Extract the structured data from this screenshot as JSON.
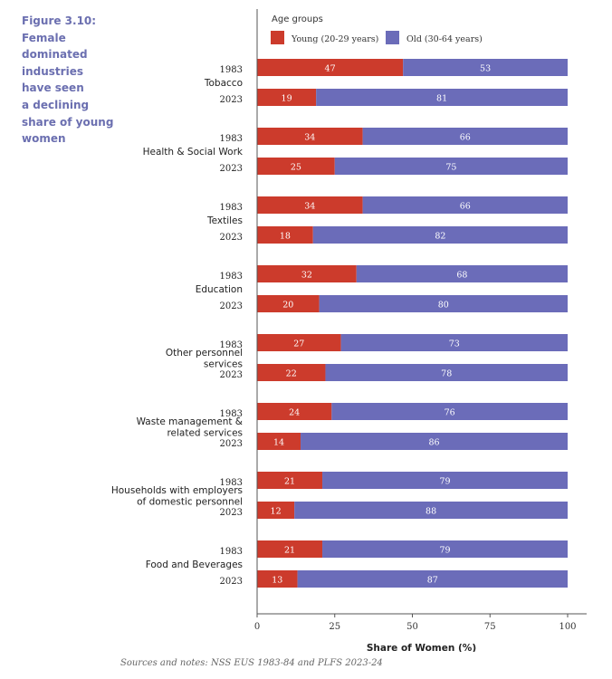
{
  "caption": {
    "label": "Figure 3.10:",
    "lines": [
      "Female",
      "dominated",
      "industries",
      "have seen",
      "a declining",
      "share of young",
      "women"
    ]
  },
  "source_note": "Sources and notes: NSS EUS 1983-84 and PLFS 2023-24",
  "chart_data": {
    "type": "bar",
    "orientation": "horizontal",
    "stacked": true,
    "legend_title": "Age groups",
    "legend_position": "top",
    "xlabel": "Share of Women (%)",
    "xlim": [
      0,
      100
    ],
    "xticks": [
      0,
      25,
      50,
      75,
      100
    ],
    "grid": false,
    "groups": [
      {
        "label": [
          "Tobacco"
        ],
        "bars": [
          {
            "year": "1983",
            "young": 47,
            "old": 53
          },
          {
            "year": "2023",
            "young": 19,
            "old": 81
          }
        ]
      },
      {
        "label": [
          "Health & Social Work"
        ],
        "bars": [
          {
            "year": "1983",
            "young": 34,
            "old": 66
          },
          {
            "year": "2023",
            "young": 25,
            "old": 75
          }
        ]
      },
      {
        "label": [
          "Textiles"
        ],
        "bars": [
          {
            "year": "1983",
            "young": 34,
            "old": 66
          },
          {
            "year": "2023",
            "young": 18,
            "old": 82
          }
        ]
      },
      {
        "label": [
          "Education"
        ],
        "bars": [
          {
            "year": "1983",
            "young": 32,
            "old": 68
          },
          {
            "year": "2023",
            "young": 20,
            "old": 80
          }
        ]
      },
      {
        "label": [
          "Other personnel",
          "services"
        ],
        "bars": [
          {
            "year": "1983",
            "young": 27,
            "old": 73
          },
          {
            "year": "2023",
            "young": 22,
            "old": 78
          }
        ]
      },
      {
        "label": [
          "Waste management &",
          "related services"
        ],
        "bars": [
          {
            "year": "1983",
            "young": 24,
            "old": 76
          },
          {
            "year": "2023",
            "young": 14,
            "old": 86
          }
        ]
      },
      {
        "label": [
          "Households with employers",
          "of domestic personnel"
        ],
        "bars": [
          {
            "year": "1983",
            "young": 21,
            "old": 79
          },
          {
            "year": "2023",
            "young": 12,
            "old": 88
          }
        ]
      },
      {
        "label": [
          "Food and Beverages"
        ],
        "bars": [
          {
            "year": "1983",
            "young": 21,
            "old": 79
          },
          {
            "year": "2023",
            "young": 13,
            "old": 87
          }
        ]
      }
    ],
    "series": [
      {
        "key": "young",
        "name": "Young (20-29 years)",
        "color": "#cc3b2c"
      },
      {
        "key": "old",
        "name": "Old (30-64 years)",
        "color": "#6b6cb9"
      }
    ]
  }
}
